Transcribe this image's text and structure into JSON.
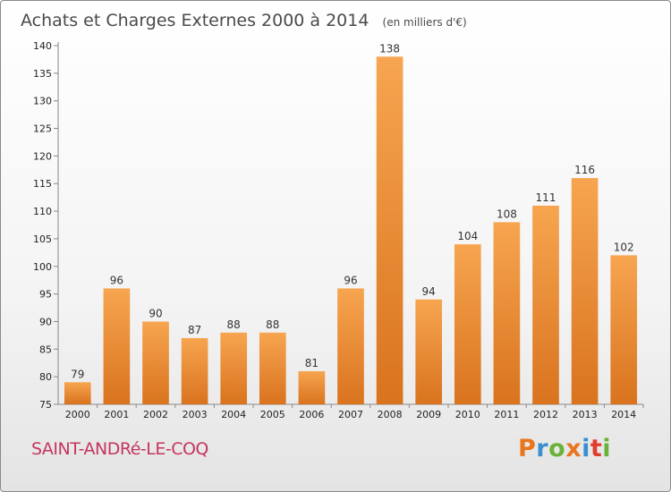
{
  "title": "Achats et Charges Externes 2000 à 2014",
  "subtitle": "(en milliers d'€)",
  "location": "SAINT-ANDRé-LE-COQ",
  "brand": {
    "letters": [
      "P",
      "r",
      "o",
      "x",
      "i",
      "t",
      "i"
    ],
    "colors": [
      "#e8761e",
      "#3b8fd1",
      "#6bb23a",
      "#e8761e",
      "#3b8fd1",
      "#e03c31",
      "#6bb23a"
    ]
  },
  "colors": {
    "bar_light": "#f7a550",
    "bar_dark": "#d9731e",
    "axis": "#888888"
  },
  "chart_data": {
    "type": "bar",
    "title": "Achats et Charges Externes 2000 à 2014",
    "subtitle": "(en milliers d'€)",
    "categories": [
      "2000",
      "2001",
      "2002",
      "2003",
      "2004",
      "2005",
      "2006",
      "2007",
      "2008",
      "2009",
      "2010",
      "2011",
      "2012",
      "2013",
      "2014"
    ],
    "values": [
      79,
      96,
      90,
      87,
      88,
      88,
      81,
      96,
      138,
      94,
      104,
      108,
      111,
      116,
      102
    ],
    "ylim": [
      75,
      140
    ],
    "yticks": [
      75,
      80,
      85,
      90,
      95,
      100,
      105,
      110,
      115,
      120,
      125,
      130,
      135,
      140
    ],
    "grid": false,
    "legend": "none"
  }
}
